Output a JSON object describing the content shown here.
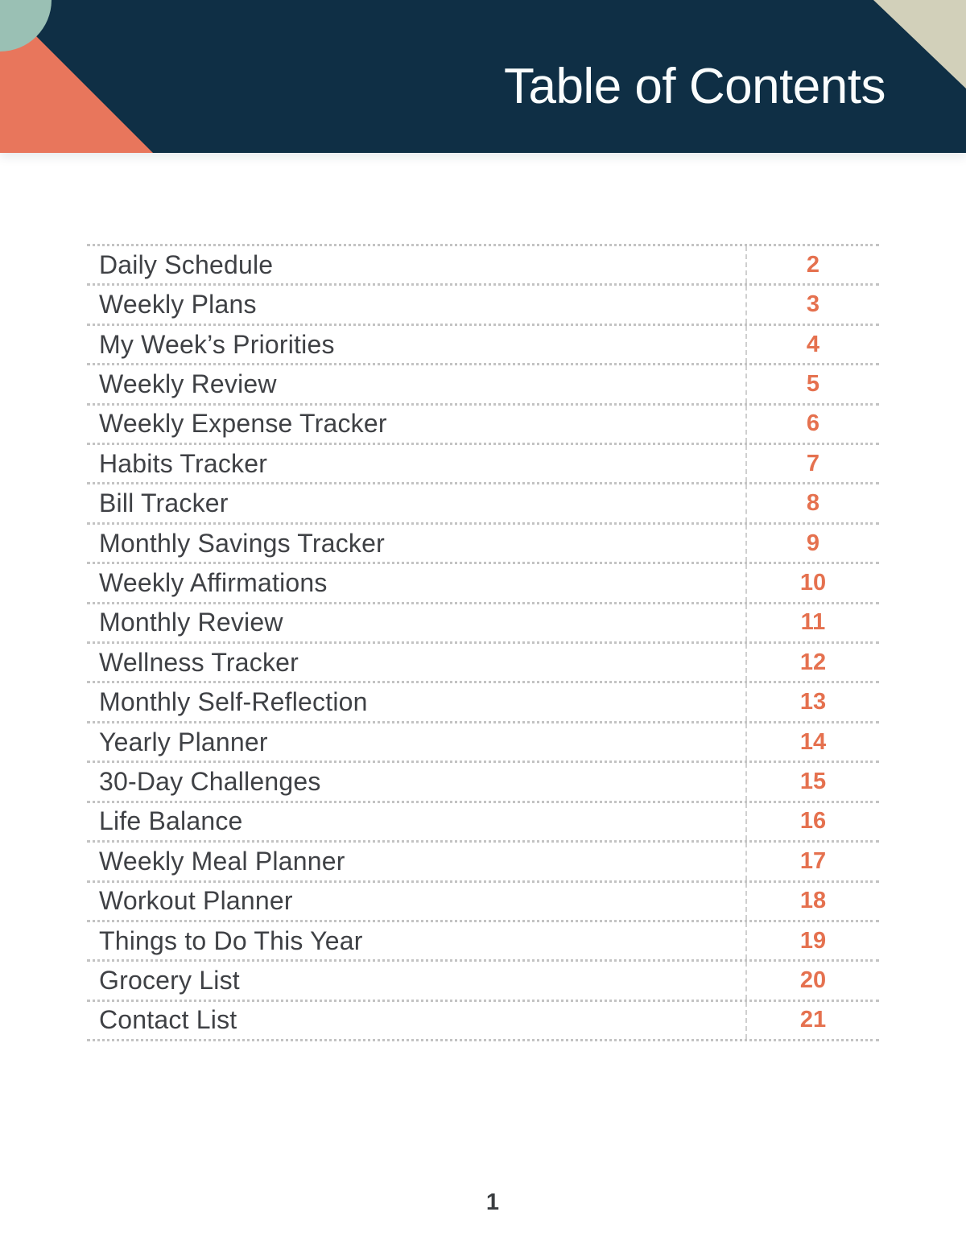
{
  "header": {
    "title": "Table of Contents"
  },
  "toc": {
    "entries": [
      {
        "label": "Daily Schedule",
        "page": "2"
      },
      {
        "label": "Weekly Plans",
        "page": "3"
      },
      {
        "label": "My Week’s Priorities",
        "page": "4"
      },
      {
        "label": "Weekly Review",
        "page": "5"
      },
      {
        "label": "Weekly Expense Tracker",
        "page": "6"
      },
      {
        "label": "Habits Tracker",
        "page": "7"
      },
      {
        "label": "Bill Tracker",
        "page": "8"
      },
      {
        "label": "Monthly Savings Tracker",
        "page": "9"
      },
      {
        "label": "Weekly Affirmations",
        "page": "10"
      },
      {
        "label": "Monthly Review",
        "page": "11"
      },
      {
        "label": "Wellness Tracker",
        "page": "12"
      },
      {
        "label": "Monthly Self-Reflection",
        "page": "13"
      },
      {
        "label": "Yearly Planner",
        "page": "14"
      },
      {
        "label": "30-Day Challenges",
        "page": "15"
      },
      {
        "label": "Life Balance",
        "page": "16"
      },
      {
        "label": "Weekly Meal Planner",
        "page": "17"
      },
      {
        "label": "Workout Planner",
        "page": "18"
      },
      {
        "label": "Things to Do This Year",
        "page": "19"
      },
      {
        "label": "Grocery List",
        "page": "20"
      },
      {
        "label": "Contact List",
        "page": "21"
      }
    ]
  },
  "footer": {
    "page_number": "1"
  },
  "colors": {
    "navy": "#0f2f45",
    "coral": "#e8765c",
    "sage": "#9ac0b4",
    "tan": "#d2d0ba",
    "page_number_accent": "#e5714f",
    "divider_gray": "#c3c3c3",
    "body_text": "#3f4145"
  }
}
